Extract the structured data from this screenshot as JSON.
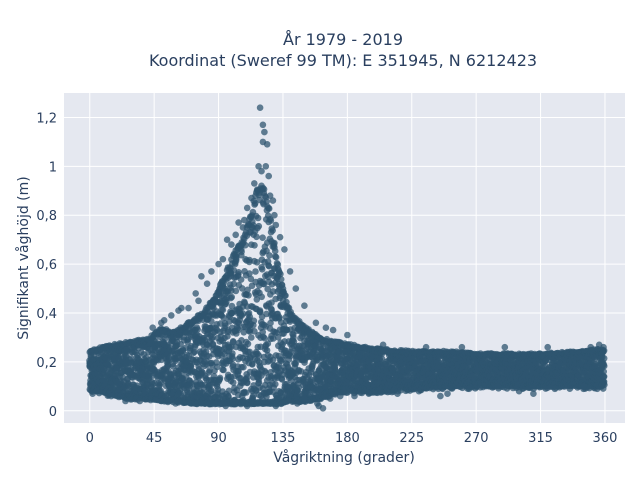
{
  "chart_data": {
    "type": "scatter",
    "title_line1": "År 1979 - 2019",
    "title_line2": "Koordinat (Sweref 99 TM): E 351945, N 6212423",
    "xlabel": "Vågriktning (grader)",
    "ylabel": "Signifikant våghöjd (m)",
    "xlim": [
      -18,
      374
    ],
    "ylim": [
      -0.05,
      1.3
    ],
    "x_ticks": [
      0,
      45,
      90,
      135,
      180,
      225,
      270,
      315,
      360
    ],
    "x_tick_labels": [
      "0",
      "45",
      "90",
      "135",
      "180",
      "225",
      "270",
      "315",
      "360"
    ],
    "y_ticks": [
      0,
      0.2,
      0.4,
      0.6,
      0.8,
      1.0,
      1.2
    ],
    "y_tick_labels": [
      "0",
      "0,2",
      "0,4",
      "0,6",
      "0,8",
      "1",
      "1,2"
    ],
    "grid": true,
    "colors": {
      "marker": "#2f5670",
      "plot_bg": "#e5e8f0",
      "grid": "#ffffff",
      "text": "#2a3f5f"
    },
    "series": [
      {
        "x": [
          0,
          10,
          20,
          30,
          40,
          50,
          60,
          70,
          80,
          90,
          100,
          110,
          115,
          120,
          125,
          130,
          135,
          140,
          150,
          160,
          170,
          180,
          200,
          225,
          250,
          270,
          290,
          315,
          340,
          360
        ],
        "y_upper": [
          0.24,
          0.26,
          0.27,
          0.28,
          0.29,
          0.33,
          0.32,
          0.36,
          0.4,
          0.49,
          0.62,
          0.74,
          0.86,
          0.93,
          0.83,
          0.64,
          0.5,
          0.4,
          0.34,
          0.3,
          0.28,
          0.27,
          0.25,
          0.24,
          0.24,
          0.23,
          0.23,
          0.23,
          0.24,
          0.25
        ],
        "y_lower": [
          0.09,
          0.07,
          0.06,
          0.05,
          0.05,
          0.04,
          0.04,
          0.03,
          0.03,
          0.03,
          0.03,
          0.03,
          0.03,
          0.03,
          0.03,
          0.03,
          0.03,
          0.04,
          0.04,
          0.05,
          0.07,
          0.08,
          0.08,
          0.09,
          0.1,
          0.1,
          0.1,
          0.1,
          0.1,
          0.1
        ]
      },
      {
        "points": [
          [
            119,
            1.24
          ],
          [
            121,
            1.17
          ],
          [
            122,
            1.14
          ],
          [
            121,
            1.1
          ],
          [
            124,
            1.09
          ],
          [
            118,
            1.0
          ],
          [
            123,
            1.0
          ],
          [
            120,
            0.98
          ],
          [
            125,
            0.96
          ],
          [
            115,
            0.93
          ],
          [
            117,
            0.9
          ],
          [
            126,
            0.88
          ],
          [
            113,
            0.87
          ],
          [
            128,
            0.86
          ],
          [
            110,
            0.83
          ],
          [
            129,
            0.8
          ],
          [
            108,
            0.78
          ],
          [
            104,
            0.77
          ],
          [
            130,
            0.76
          ],
          [
            107,
            0.75
          ],
          [
            102,
            0.72
          ],
          [
            133,
            0.71
          ],
          [
            96,
            0.7
          ],
          [
            99,
            0.68
          ],
          [
            136,
            0.66
          ],
          [
            93,
            0.62
          ],
          [
            90,
            0.6
          ],
          [
            140,
            0.57
          ],
          [
            85,
            0.57
          ],
          [
            78,
            0.55
          ],
          [
            82,
            0.52
          ],
          [
            144,
            0.5
          ],
          [
            74,
            0.48
          ],
          [
            76,
            0.45
          ],
          [
            150,
            0.43
          ],
          [
            69,
            0.42
          ],
          [
            64,
            0.42
          ],
          [
            62,
            0.41
          ],
          [
            57,
            0.39
          ],
          [
            52,
            0.37
          ],
          [
            50,
            0.36
          ],
          [
            44,
            0.34
          ],
          [
            158,
            0.36
          ],
          [
            165,
            0.34
          ],
          [
            170,
            0.33
          ],
          [
            180,
            0.31
          ],
          [
            205,
            0.27
          ],
          [
            235,
            0.26
          ],
          [
            260,
            0.26
          ],
          [
            290,
            0.26
          ],
          [
            320,
            0.26
          ],
          [
            350,
            0.26
          ],
          [
            356,
            0.27
          ],
          [
            359,
            0.26
          ],
          [
            160,
            0.02
          ],
          [
            163,
            0.01
          ],
          [
            159,
            0.03
          ],
          [
            168,
            0.05
          ],
          [
            175,
            0.06
          ],
          [
            195,
            0.07
          ],
          [
            215,
            0.07
          ],
          [
            230,
            0.08
          ],
          [
            245,
            0.06
          ],
          [
            265,
            0.09
          ],
          [
            285,
            0.1
          ],
          [
            300,
            0.08
          ],
          [
            325,
            0.09
          ],
          [
            345,
            0.1
          ],
          [
            5,
            0.08
          ],
          [
            2,
            0.07
          ],
          [
            15,
            0.06
          ],
          [
            25,
            0.04
          ],
          [
            35,
            0.04
          ],
          [
            60,
            0.03
          ],
          [
            95,
            0.02
          ],
          [
            110,
            0.02
          ],
          [
            130,
            0.02
          ],
          [
            145,
            0.03
          ],
          [
            150,
            0.05
          ],
          [
            185,
            0.06
          ],
          [
            250,
            0.07
          ],
          [
            310,
            0.07
          ]
        ]
      }
    ]
  }
}
